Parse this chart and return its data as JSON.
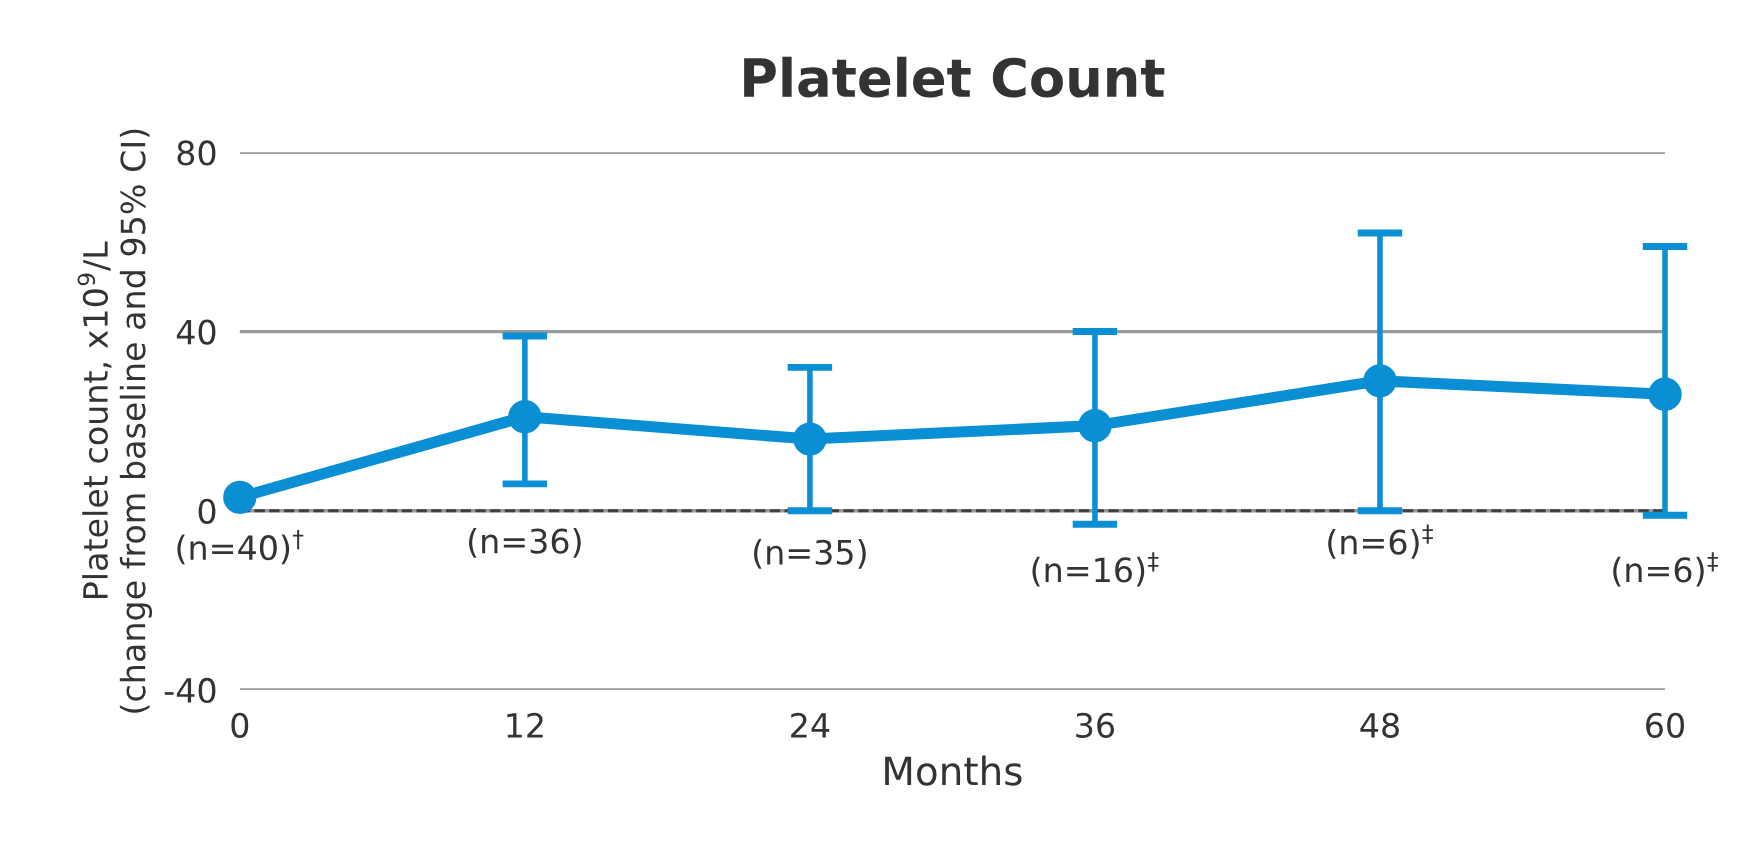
{
  "chart_data": {
    "type": "line",
    "title": "Platelet Count",
    "xlabel": "Months",
    "ylabel": "Platelet count, x10$^{9}$/L\n(change from baseline and 95% CI)",
    "x": [
      0,
      12,
      24,
      36,
      48,
      60
    ],
    "series": [
      {
        "color": "#0a8fd4",
        "values": [
          3,
          21,
          16,
          19,
          29,
          26
        ],
        "errors": [
          null,
          [
            6,
            39
          ],
          [
            0,
            32
          ],
          [
            -3,
            40
          ],
          [
            0,
            62
          ],
          [
            -1,
            59
          ]
        ]
      }
    ],
    "xlim": [
      0,
      60
    ],
    "xticks": [
      0,
      12,
      24,
      36,
      48,
      60
    ],
    "ylim": [
      -40,
      80
    ],
    "yticks": [
      -40,
      0,
      40,
      80
    ],
    "grid": "y",
    "marker": "circle",
    "line_style": "solid",
    "legend": false,
    "ref_lines": [
      {
        "axis": "y",
        "value": 0,
        "color": "#404040",
        "line_style": "dashed"
      }
    ],
    "annotations": [
      "(n=40)$^{†}$",
      "(n=36)",
      "(n=35)",
      "(n=16)$^{‡}$",
      "(n=6)$^{‡}$",
      "(n=6)$^{‡}$"
    ]
  }
}
